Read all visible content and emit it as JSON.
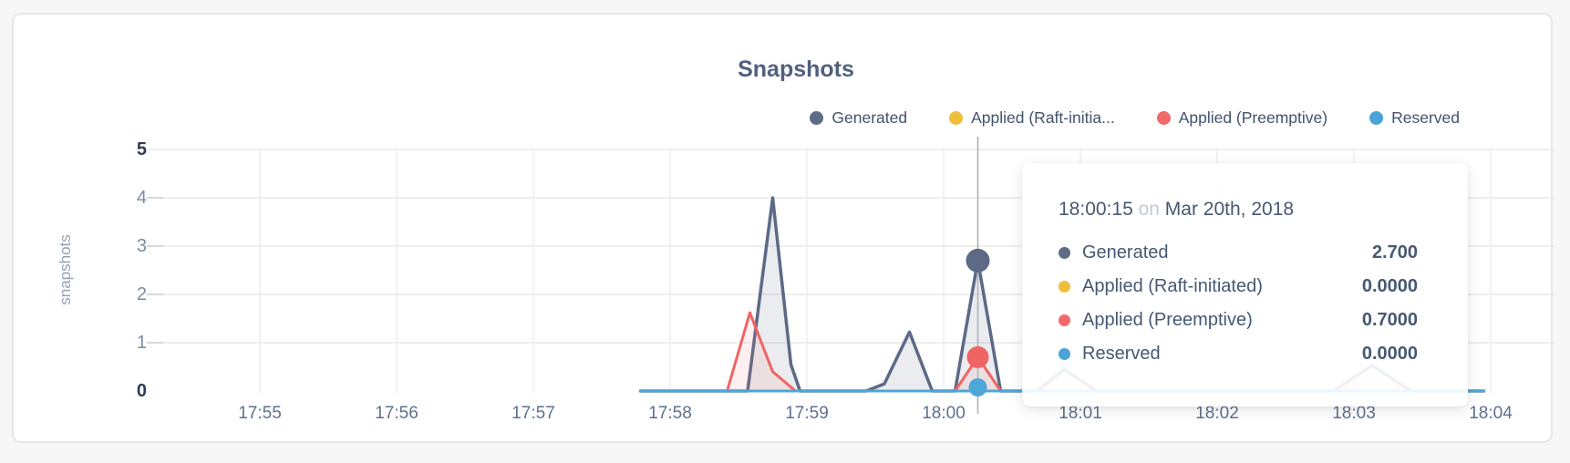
{
  "page": {
    "background": "#f7f7f7",
    "card_border": "#e7e7e7"
  },
  "chart": {
    "title": "Snapshots",
    "y_axis_label": "snapshots",
    "y_tick_labels": [
      "5",
      "4",
      "3",
      "2",
      "1",
      "0"
    ],
    "legend": [
      {
        "label": "Generated",
        "color": "#5F6C87"
      },
      {
        "label": "Applied (Raft-initia...",
        "color": "#F0BE3D"
      },
      {
        "label": "Applied (Preemptive)",
        "color": "#F16A6A"
      },
      {
        "label": "Reserved",
        "color": "#4AA4DA"
      }
    ],
    "grid_color": "#e8e8e8",
    "tick_mark_color": "#d5d8dd",
    "hover_line_color": "#aeb3ba"
  },
  "tooltip": {
    "time": "18:00:15",
    "preposition": "on",
    "date": "Mar 20th, 2018",
    "rows": [
      {
        "label": "Generated",
        "value": "2.700",
        "color": "#5F6C87"
      },
      {
        "label": "Applied (Raft-initiated)",
        "value": "0.0000",
        "color": "#F0BE3D"
      },
      {
        "label": "Applied (Preemptive)",
        "value": "0.7000",
        "color": "#F16A6A"
      },
      {
        "label": "Reserved",
        "value": "0.0000",
        "color": "#4AA4DA"
      }
    ]
  },
  "chart_data": {
    "type": "area",
    "title": "Snapshots",
    "xlabel": "",
    "ylabel": "snapshots",
    "ylim": [
      0,
      5
    ],
    "y_gridlines": [
      1,
      2,
      3,
      4,
      5
    ],
    "x_ticks": [
      "17:55",
      "17:56",
      "17:57",
      "17:58",
      "17:59",
      "18:00",
      "18:01",
      "18:02",
      "18:03",
      "18:04"
    ],
    "x_domain": [
      "17:54:12",
      "18:04:28"
    ],
    "date": "Mar 20th, 2018",
    "legend_position": "top-right",
    "grid": true,
    "series": [
      {
        "name": "Generated",
        "color": "#5C6A86",
        "fill": "rgba(95,108,135,0.13)",
        "line_width": 3.5,
        "points": [
          [
            "17:57:47",
            0
          ],
          [
            "17:58:34",
            0
          ],
          [
            "17:58:45",
            4.0
          ],
          [
            "17:58:53",
            0.55
          ],
          [
            "17:58:57",
            0
          ],
          [
            "17:59:26",
            0
          ],
          [
            "17:59:34",
            0.15
          ],
          [
            "17:59:45",
            1.22
          ],
          [
            "17:59:55",
            0
          ],
          [
            "18:00:05",
            0
          ],
          [
            "18:00:15",
            2.7
          ],
          [
            "18:00:25",
            0
          ],
          [
            "18:00:41",
            0
          ],
          [
            "18:00:53",
            0.45
          ],
          [
            "18:01:07",
            0
          ],
          [
            "18:02:51",
            0
          ],
          [
            "18:03:08",
            0.53
          ],
          [
            "18:03:25",
            0
          ],
          [
            "18:03:57",
            0
          ]
        ]
      },
      {
        "name": "Applied (Raft-initiated)",
        "color": "#F0BE3D",
        "fill": "none",
        "line_width": 2.5,
        "points": [
          [
            "17:57:47",
            0
          ],
          [
            "18:03:57",
            0
          ]
        ]
      },
      {
        "name": "Applied (Preemptive)",
        "color": "#F16464",
        "fill": "rgba(241,106,106,0.10)",
        "line_width": 3,
        "points": [
          [
            "17:57:47",
            0
          ],
          [
            "17:58:25",
            0
          ],
          [
            "17:58:35",
            1.62
          ],
          [
            "17:58:45",
            0.4
          ],
          [
            "17:58:50",
            0.2
          ],
          [
            "17:58:55",
            0
          ],
          [
            "18:00:05",
            0
          ],
          [
            "18:00:15",
            0.7
          ],
          [
            "18:00:25",
            0
          ],
          [
            "18:03:57",
            0
          ]
        ]
      },
      {
        "name": "Reserved",
        "color": "#4FA6D8",
        "fill": "none",
        "line_width": 3,
        "points": [
          [
            "17:57:47",
            0
          ],
          [
            "18:03:57",
            0
          ]
        ]
      }
    ],
    "hover": {
      "time": "18:00:15",
      "points": [
        {
          "series": "Generated",
          "value": 2.7,
          "r": 13
        },
        {
          "series": "Applied (Preemptive)",
          "value": 0.7,
          "r": 12
        },
        {
          "series": "Reserved",
          "value": 0,
          "r": 10
        }
      ]
    }
  }
}
